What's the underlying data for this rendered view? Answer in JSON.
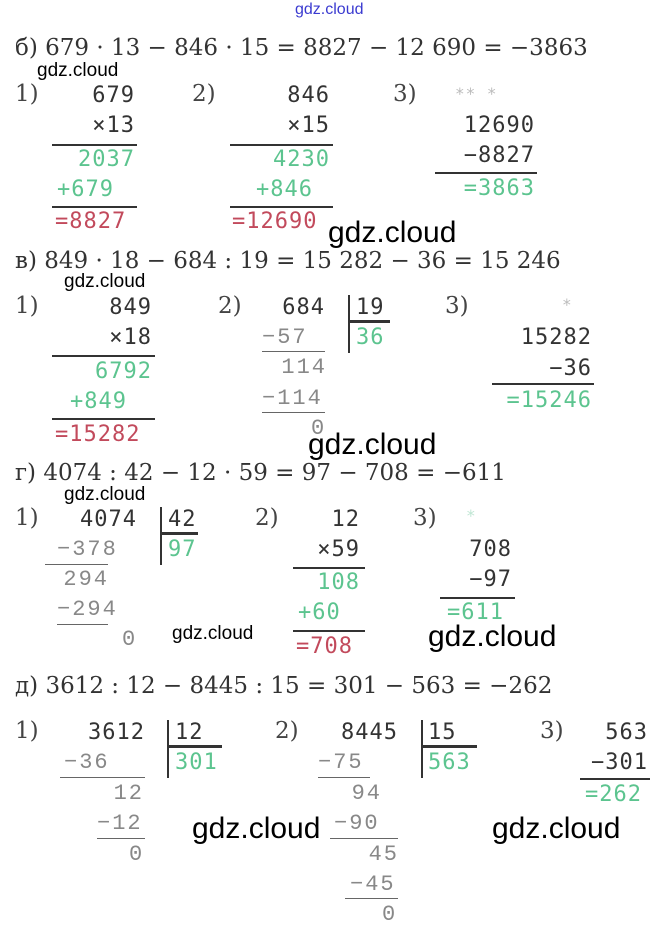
{
  "watermark": "gdz.cloud",
  "colors": {
    "text": "#333333",
    "intermediate": "#5cc48f",
    "result": "#c24a5c",
    "watermark_top": "#3a3ad0"
  },
  "b": {
    "equation": "б) 679 · 13 − 846 · 15 = 8827 − 12 690 = −3863",
    "s1": {
      "label": "1)",
      "a": "679",
      "b": "×13",
      "p1": "2037",
      "p2": "+679",
      "res": "=8827"
    },
    "s2": {
      "label": "2)",
      "a": "846",
      "b": "×15",
      "p1": "4230",
      "p2": "+846",
      "res": "=12690"
    },
    "s3": {
      "label": "3)",
      "marks": "** *",
      "a": "12690",
      "b": "−8827",
      "res": "=3863"
    }
  },
  "v": {
    "equation": "в) 849 · 18 − 684 : 19 = 15 282 − 36 = 15 246",
    "s1": {
      "label": "1)",
      "a": "849",
      "b": "×18",
      "p1": "6792",
      "p2": "+849",
      "res": "=15282"
    },
    "s2": {
      "label": "2)",
      "dividend": "684",
      "divisor": "19",
      "quotient": "36",
      "r1": "−57",
      "r2": "114",
      "r3": "−114",
      "r4": "0"
    },
    "s3": {
      "label": "3)",
      "marks": "*",
      "a": "15282",
      "b": "−36",
      "res": "=15246"
    }
  },
  "g": {
    "equation": "г) 4074 : 42 − 12 · 59 = 97 − 708 = −611",
    "s1": {
      "label": "1)",
      "dividend": "4074",
      "divisor": "42",
      "quotient": "97",
      "r1": "−378",
      "r2": "294",
      "r3": "−294",
      "r4": "0"
    },
    "s2": {
      "label": "2)",
      "a": "12",
      "b": "×59",
      "p1": "108",
      "p2": "+60",
      "res": "=708"
    },
    "s3": {
      "label": "3)",
      "marks": "*",
      "a": "708",
      "b": "−97",
      "res": "=611"
    }
  },
  "d": {
    "equation": "д) 3612 : 12 − 8445 : 15 = 301 − 563 = −262",
    "s1": {
      "label": "1)",
      "dividend": "3612",
      "divisor": "12",
      "quotient": "301",
      "r1": "−36",
      "r2": "12",
      "r3": "−12",
      "r4": "0"
    },
    "s2": {
      "label": "2)",
      "dividend": "8445",
      "divisor": "15",
      "quotient": "563",
      "r1": "−75",
      "r2": "94",
      "r3": "−90",
      "r4": "45",
      "r5": "−45",
      "r6": "0"
    },
    "s3": {
      "label": "3)",
      "a": "563",
      "b": "−301",
      "res": "=262"
    }
  }
}
